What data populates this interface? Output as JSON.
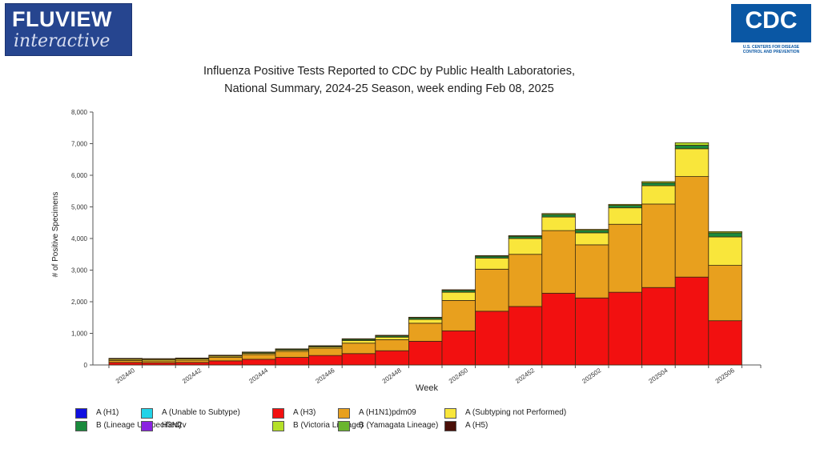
{
  "header": {
    "fluview_logo": {
      "line1": "FLUVIEW",
      "line2": "interactive"
    },
    "cdc_logo": {
      "word": "CDC",
      "tagline1": "U.S. CENTERS FOR DISEASE",
      "tagline2": "CONTROL AND PREVENTION"
    }
  },
  "chart_data": {
    "type": "bar",
    "stacked": true,
    "title": "Influenza Positive Tests Reported to CDC by Public Health Laboratories,",
    "subtitle": "National Summary, 2024-25 Season, week ending Feb 08, 2025",
    "xlabel": "Week",
    "ylabel": "# of Positive Specimens",
    "ylim": [
      0,
      8000
    ],
    "yticks": [
      "0",
      "1,000",
      "2,000",
      "3,000",
      "4,000",
      "5,000",
      "6,000",
      "7,000",
      "8,000"
    ],
    "xtick_labels": [
      "202440",
      "202442",
      "202444",
      "202446",
      "202448",
      "202450",
      "202452",
      "202502",
      "202504",
      "202506"
    ],
    "grid": false,
    "legend_position": "bottom",
    "categories": [
      "202440",
      "202441",
      "202442",
      "202443",
      "202444",
      "202445",
      "202446",
      "202447",
      "202448",
      "202449",
      "202450",
      "202451",
      "202452",
      "202501",
      "202502",
      "202503",
      "202504",
      "202505",
      "202506"
    ],
    "series": [
      {
        "name": "A (H1)",
        "color": "#1010e0",
        "values": [
          0,
          0,
          0,
          0,
          0,
          0,
          0,
          0,
          0,
          0,
          0,
          0,
          0,
          0,
          0,
          0,
          0,
          0,
          0
        ]
      },
      {
        "name": "A (Unable to Subtype)",
        "color": "#22d3e8",
        "values": [
          0,
          0,
          0,
          0,
          0,
          0,
          0,
          0,
          0,
          0,
          0,
          0,
          0,
          0,
          0,
          0,
          0,
          0,
          0
        ]
      },
      {
        "name": "A (H3)",
        "color": "#f21010",
        "values": [
          80,
          70,
          80,
          130,
          180,
          240,
          300,
          360,
          450,
          750,
          1080,
          1700,
          1850,
          2270,
          2120,
          2300,
          2450,
          2780,
          1400
        ]
      },
      {
        "name": "A (H1N1)pdm09",
        "color": "#e8a01e",
        "values": [
          60,
          55,
          70,
          110,
          150,
          190,
          230,
          330,
          350,
          570,
          960,
          1330,
          1650,
          1980,
          1680,
          2150,
          2640,
          3180,
          1750
        ]
      },
      {
        "name": "A (Subtyping not Performed)",
        "color": "#f9e63b",
        "values": [
          40,
          45,
          40,
          40,
          40,
          40,
          40,
          80,
          80,
          120,
          260,
          350,
          500,
          430,
          380,
          520,
          580,
          880,
          900
        ]
      },
      {
        "name": "B (Lineage Unspecified)",
        "color": "#1a8a3c",
        "values": [
          20,
          20,
          20,
          20,
          30,
          30,
          30,
          40,
          40,
          50,
          60,
          60,
          70,
          80,
          80,
          80,
          90,
          110,
          130
        ]
      },
      {
        "name": "H3N2v",
        "color": "#8a22e0",
        "values": [
          0,
          0,
          0,
          0,
          0,
          0,
          0,
          0,
          0,
          0,
          0,
          0,
          0,
          0,
          0,
          0,
          0,
          0,
          0
        ]
      },
      {
        "name": "B (Victoria Lineage)",
        "color": "#b5e02a",
        "values": [
          10,
          10,
          10,
          10,
          10,
          10,
          10,
          20,
          20,
          20,
          20,
          20,
          20,
          30,
          30,
          30,
          40,
          80,
          40
        ]
      },
      {
        "name": "B (Yamagata Lineage)",
        "color": "#6ab52e",
        "values": [
          0,
          0,
          0,
          0,
          0,
          0,
          0,
          0,
          0,
          0,
          0,
          0,
          0,
          0,
          0,
          0,
          0,
          0,
          0
        ]
      },
      {
        "name": "A (H5)",
        "color": "#4a0f08",
        "values": [
          0,
          0,
          0,
          0,
          0,
          0,
          0,
          0,
          0,
          0,
          0,
          0,
          0,
          0,
          0,
          0,
          0,
          0,
          0
        ]
      }
    ]
  }
}
